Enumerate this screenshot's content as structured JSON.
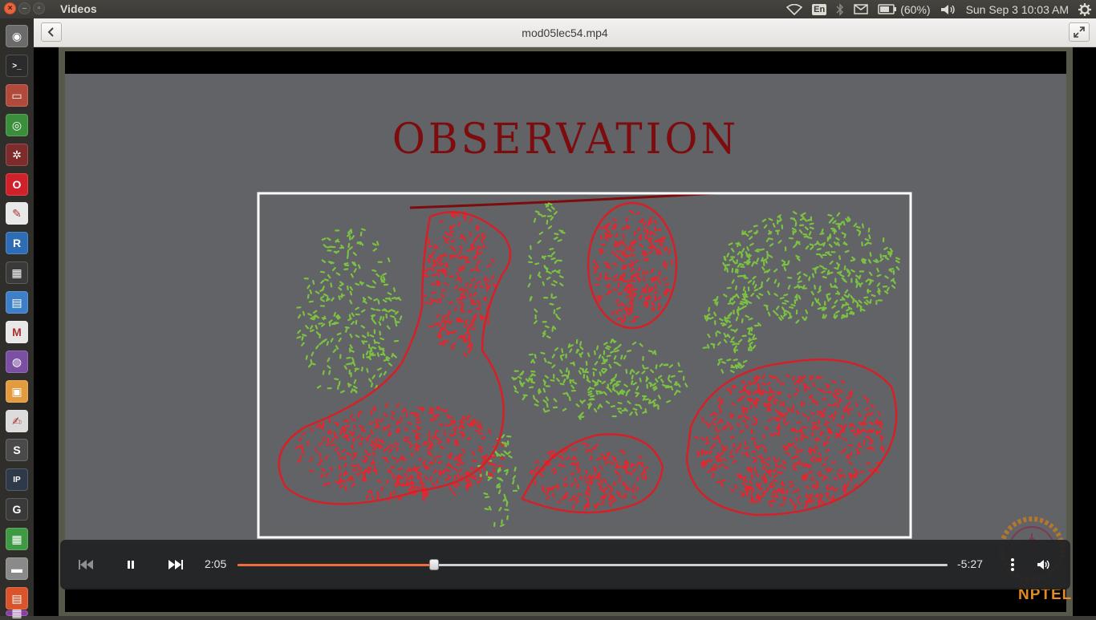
{
  "top_panel": {
    "app_title": "Videos",
    "keyboard_layout": "En",
    "battery_text": "(60%)",
    "datetime": "Sun Sep  3 10:03 AM"
  },
  "header": {
    "file_title": "mod05lec54.mp4"
  },
  "slide": {
    "title": "OBSERVATION",
    "logo_text": "NPTEL"
  },
  "player": {
    "elapsed": "2:05",
    "remaining": "-5:27",
    "progress_fraction": 0.277,
    "accent_color": "#ef6d3b"
  },
  "launcher": {
    "items": [
      {
        "name": "dash-icon",
        "color": "#6b6b6b",
        "glyph": "◉"
      },
      {
        "name": "terminal-icon",
        "color": "#2b2b2b",
        "glyph": ">_"
      },
      {
        "name": "files-icon",
        "color": "#b24a3c",
        "glyph": "▭"
      },
      {
        "name": "chrome-icon",
        "color": "#3b8e3b",
        "glyph": "◎"
      },
      {
        "name": "settings-gear-icon",
        "color": "#7d2b2b",
        "glyph": "✲"
      },
      {
        "name": "opera-icon",
        "color": "#d0202a",
        "glyph": "O"
      },
      {
        "name": "pdf-viewer-icon",
        "color": "#e8e8e8",
        "glyph": "✎"
      },
      {
        "name": "r-language-icon",
        "color": "#2d6db5",
        "glyph": "R"
      },
      {
        "name": "video-clapper-icon",
        "color": "#3a3a3a",
        "glyph": "▦"
      },
      {
        "name": "writer-document-icon",
        "color": "#3d7fc9",
        "glyph": "▤"
      },
      {
        "name": "gmail-icon",
        "color": "#e8e8e8",
        "glyph": "M"
      },
      {
        "name": "media-player-icon",
        "color": "#7b4fa3",
        "glyph": "◍"
      },
      {
        "name": "impress-icon",
        "color": "#e39b3f",
        "glyph": "▣"
      },
      {
        "name": "text-editor-icon",
        "color": "#dcdcdc",
        "glyph": "✍"
      },
      {
        "name": "sublime-icon",
        "color": "#4a4a4a",
        "glyph": "S"
      },
      {
        "name": "ipython-icon",
        "color": "#2e3a4a",
        "glyph": "IP"
      },
      {
        "name": "geogebra-icon",
        "color": "#3a3a3a",
        "glyph": "G"
      },
      {
        "name": "calc-spreadsheet-icon",
        "color": "#3f9b43",
        "glyph": "▦"
      },
      {
        "name": "drive-icon",
        "color": "#8a8a8a",
        "glyph": "▬"
      },
      {
        "name": "software-center-icon",
        "color": "#d9532b",
        "glyph": "▤"
      },
      {
        "name": "workspace-switcher-icon",
        "color": "#8a3ea5",
        "glyph": "▦"
      }
    ]
  }
}
